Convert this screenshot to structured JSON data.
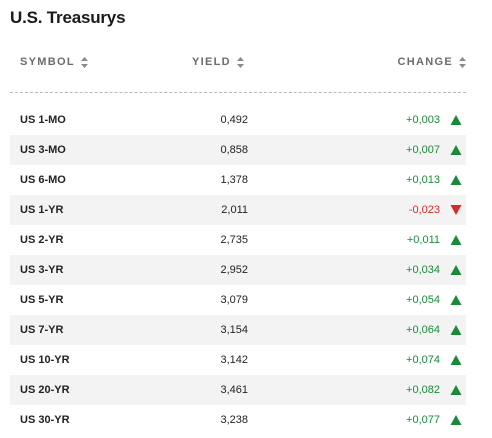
{
  "title": "U.S. Treasurys",
  "header": {
    "symbol": "SYMBOL",
    "yield": "YIELD",
    "change": "CHANGE"
  },
  "colors": {
    "up": "#1a8a3a",
    "down": "#d62b2b"
  },
  "rows": [
    {
      "symbol": "US 1-MO",
      "yield": "0,492",
      "change": "+0,003",
      "direction": "up"
    },
    {
      "symbol": "US 3-MO",
      "yield": "0,858",
      "change": "+0,007",
      "direction": "up"
    },
    {
      "symbol": "US 6-MO",
      "yield": "1,378",
      "change": "+0,013",
      "direction": "up"
    },
    {
      "symbol": "US 1-YR",
      "yield": "2,011",
      "change": "-0,023",
      "direction": "down"
    },
    {
      "symbol": "US 2-YR",
      "yield": "2,735",
      "change": "+0,011",
      "direction": "up"
    },
    {
      "symbol": "US 3-YR",
      "yield": "2,952",
      "change": "+0,034",
      "direction": "up"
    },
    {
      "symbol": "US 5-YR",
      "yield": "3,079",
      "change": "+0,054",
      "direction": "up"
    },
    {
      "symbol": "US 7-YR",
      "yield": "3,154",
      "change": "+0,064",
      "direction": "up"
    },
    {
      "symbol": "US 10-YR",
      "yield": "3,142",
      "change": "+0,074",
      "direction": "up"
    },
    {
      "symbol": "US 20-YR",
      "yield": "3,461",
      "change": "+0,082",
      "direction": "up"
    },
    {
      "symbol": "US 30-YR",
      "yield": "3,238",
      "change": "+0,077",
      "direction": "up"
    }
  ]
}
